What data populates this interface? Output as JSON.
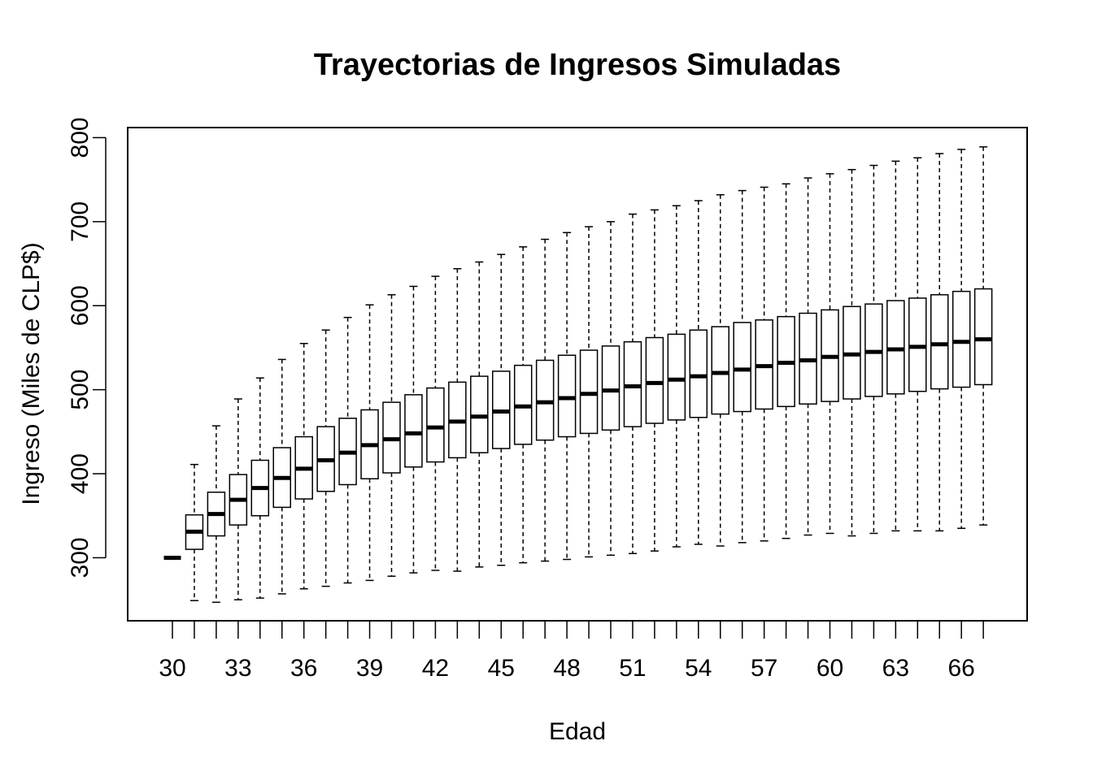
{
  "chart_data": {
    "type": "box",
    "title": "Trayectorias de Ingresos Simuladas",
    "xlabel": "Edad",
    "ylabel": "Ingreso (Miles de CLP$)",
    "ylim": [
      225,
      812
    ],
    "yticks": [
      300,
      400,
      500,
      600,
      700,
      800
    ],
    "xtick_labels": [
      "30",
      "33",
      "36",
      "39",
      "42",
      "45",
      "48",
      "51",
      "54",
      "57",
      "60",
      "63",
      "66"
    ],
    "grid": false,
    "legend": "none",
    "categories": [
      "30",
      "31",
      "32",
      "33",
      "34",
      "35",
      "36",
      "37",
      "38",
      "39",
      "40",
      "41",
      "42",
      "43",
      "44",
      "45",
      "46",
      "47",
      "48",
      "49",
      "50",
      "51",
      "52",
      "53",
      "54",
      "55",
      "56",
      "57",
      "58",
      "59",
      "60",
      "61",
      "62",
      "63",
      "64",
      "65",
      "66",
      "67"
    ],
    "boxes": [
      {
        "age": 30,
        "min": 300,
        "q1": 300,
        "median": 300,
        "q3": 300,
        "max": 300
      },
      {
        "age": 31,
        "min": 249,
        "q1": 310,
        "median": 331,
        "q3": 351,
        "max": 411
      },
      {
        "age": 32,
        "min": 247,
        "q1": 326,
        "median": 352,
        "q3": 378,
        "max": 457
      },
      {
        "age": 33,
        "min": 250,
        "q1": 339,
        "median": 369,
        "q3": 399,
        "max": 489
      },
      {
        "age": 34,
        "min": 252,
        "q1": 350,
        "median": 383,
        "q3": 416,
        "max": 514
      },
      {
        "age": 35,
        "min": 257,
        "q1": 360,
        "median": 395,
        "q3": 431,
        "max": 536
      },
      {
        "age": 36,
        "min": 263,
        "q1": 370,
        "median": 406,
        "q3": 444,
        "max": 555
      },
      {
        "age": 37,
        "min": 266,
        "q1": 379,
        "median": 416,
        "q3": 456,
        "max": 571
      },
      {
        "age": 38,
        "min": 270,
        "q1": 387,
        "median": 425,
        "q3": 466,
        "max": 586
      },
      {
        "age": 39,
        "min": 273,
        "q1": 394,
        "median": 434,
        "q3": 476,
        "max": 601
      },
      {
        "age": 40,
        "min": 278,
        "q1": 401,
        "median": 441,
        "q3": 485,
        "max": 613
      },
      {
        "age": 41,
        "min": 282,
        "q1": 408,
        "median": 448,
        "q3": 494,
        "max": 623
      },
      {
        "age": 42,
        "min": 285,
        "q1": 414,
        "median": 455,
        "q3": 502,
        "max": 635
      },
      {
        "age": 43,
        "min": 284,
        "q1": 419,
        "median": 462,
        "q3": 509,
        "max": 644
      },
      {
        "age": 44,
        "min": 289,
        "q1": 425,
        "median": 468,
        "q3": 516,
        "max": 652
      },
      {
        "age": 45,
        "min": 291,
        "q1": 430,
        "median": 474,
        "q3": 522,
        "max": 661
      },
      {
        "age": 46,
        "min": 294,
        "q1": 435,
        "median": 480,
        "q3": 529,
        "max": 670
      },
      {
        "age": 47,
        "min": 296,
        "q1": 440,
        "median": 485,
        "q3": 535,
        "max": 679
      },
      {
        "age": 48,
        "min": 298,
        "q1": 444,
        "median": 490,
        "q3": 541,
        "max": 687
      },
      {
        "age": 49,
        "min": 301,
        "q1": 448,
        "median": 495,
        "q3": 547,
        "max": 694
      },
      {
        "age": 50,
        "min": 303,
        "q1": 452,
        "median": 499,
        "q3": 552,
        "max": 700
      },
      {
        "age": 51,
        "min": 305,
        "q1": 456,
        "median": 504,
        "q3": 557,
        "max": 709
      },
      {
        "age": 52,
        "min": 308,
        "q1": 460,
        "median": 508,
        "q3": 562,
        "max": 714
      },
      {
        "age": 53,
        "min": 313,
        "q1": 464,
        "median": 512,
        "q3": 566,
        "max": 719
      },
      {
        "age": 54,
        "min": 316,
        "q1": 467,
        "median": 516,
        "q3": 571,
        "max": 725
      },
      {
        "age": 55,
        "min": 314,
        "q1": 471,
        "median": 520,
        "q3": 575,
        "max": 732
      },
      {
        "age": 56,
        "min": 318,
        "q1": 474,
        "median": 524,
        "q3": 580,
        "max": 737
      },
      {
        "age": 57,
        "min": 320,
        "q1": 477,
        "median": 528,
        "q3": 583,
        "max": 741
      },
      {
        "age": 58,
        "min": 323,
        "q1": 480,
        "median": 532,
        "q3": 587,
        "max": 745
      },
      {
        "age": 59,
        "min": 327,
        "q1": 483,
        "median": 535,
        "q3": 591,
        "max": 752
      },
      {
        "age": 60,
        "min": 329,
        "q1": 486,
        "median": 539,
        "q3": 595,
        "max": 757
      },
      {
        "age": 61,
        "min": 326,
        "q1": 489,
        "median": 542,
        "q3": 599,
        "max": 762
      },
      {
        "age": 62,
        "min": 329,
        "q1": 492,
        "median": 545,
        "q3": 602,
        "max": 767
      },
      {
        "age": 63,
        "min": 332,
        "q1": 495,
        "median": 548,
        "q3": 606,
        "max": 772
      },
      {
        "age": 64,
        "min": 332,
        "q1": 498,
        "median": 551,
        "q3": 609,
        "max": 776
      },
      {
        "age": 65,
        "min": 332,
        "q1": 501,
        "median": 554,
        "q3": 613,
        "max": 781
      },
      {
        "age": 66,
        "min": 335,
        "q1": 503,
        "median": 557,
        "q3": 617,
        "max": 786
      },
      {
        "age": 67,
        "min": 339,
        "q1": 506,
        "median": 560,
        "q3": 620,
        "max": 789
      }
    ]
  }
}
